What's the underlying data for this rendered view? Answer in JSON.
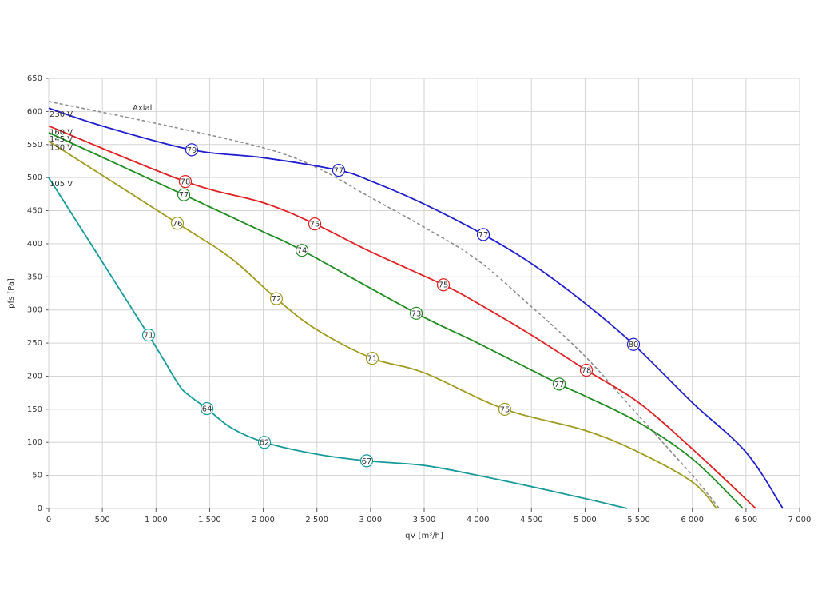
{
  "chart_data": {
    "type": "line",
    "xlabel": "qV [m³/h]",
    "ylabel": "pfs [Pa]",
    "xlim": [
      0,
      7000
    ],
    "ylim": [
      0,
      650
    ],
    "xticks": [
      0,
      500,
      {
        "value": 1000,
        "label": "1 000"
      },
      {
        "value": 1500,
        "label": "1 500"
      },
      {
        "value": 2000,
        "label": "2 000"
      },
      {
        "value": 2500,
        "label": "2 500"
      },
      {
        "value": 3000,
        "label": "3 000"
      },
      {
        "value": 3500,
        "label": "3 500"
      },
      {
        "value": 4000,
        "label": "4 000"
      },
      {
        "value": 4500,
        "label": "4 500"
      },
      {
        "value": 5000,
        "label": "5 000"
      },
      {
        "value": 5500,
        "label": "5 500"
      },
      {
        "value": 6000,
        "label": "6 000"
      },
      {
        "value": 6500,
        "label": "6 500"
      },
      {
        "value": 7000,
        "label": "7 000"
      }
    ],
    "yticks": [
      0,
      50,
      100,
      150,
      200,
      250,
      300,
      350,
      400,
      450,
      500,
      550,
      600,
      650
    ],
    "grid": true,
    "series": [
      {
        "name": "Axial",
        "color": "#8c8c8c",
        "dashed": true,
        "x": [
          0,
          1000,
          2000,
          2500,
          3000,
          3500,
          4000,
          4500,
          5000,
          5500,
          6000,
          6250
        ],
        "y": [
          615,
          582,
          545,
          515,
          470,
          425,
          375,
          305,
          230,
          140,
          50,
          0
        ],
        "markers": []
      },
      {
        "name": "230 V",
        "color": "#1f1fd0",
        "dashed": false,
        "x": [
          0,
          500,
          1333,
          2000,
          2703,
          3000,
          3500,
          4051,
          4500,
          5000,
          5451,
          6000,
          6500,
          6844
        ],
        "y": [
          605,
          578,
          542,
          530,
          511,
          495,
          460,
          414,
          370,
          310,
          248,
          160,
          85,
          0
        ],
        "markers": [
          {
            "x": 1333,
            "y": 542,
            "label": 79
          },
          {
            "x": 2703,
            "y": 511,
            "label": 77
          },
          {
            "x": 4051,
            "y": 414,
            "label": 77
          },
          {
            "x": 5451,
            "y": 248,
            "label": 80
          }
        ]
      },
      {
        "name": "160 V",
        "color": "#e02020",
        "dashed": false,
        "x": [
          0,
          1273,
          2000,
          2480,
          3000,
          3679,
          4000,
          4500,
          5012,
          5500,
          6000,
          6591
        ],
        "y": [
          578,
          494,
          462,
          430,
          388,
          338,
          310,
          262,
          209,
          160,
          90,
          0
        ],
        "markers": [
          {
            "x": 1273,
            "y": 494,
            "label": 78
          },
          {
            "x": 2480,
            "y": 430,
            "label": 75
          },
          {
            "x": 3679,
            "y": 338,
            "label": 75
          },
          {
            "x": 5012,
            "y": 209,
            "label": 78
          }
        ]
      },
      {
        "name": "145 V",
        "color": "#1e8c1e",
        "dashed": false,
        "x": [
          0,
          1259,
          2000,
          2361,
          3426,
          4000,
          4759,
          5000,
          5500,
          6000,
          6471
        ],
        "y": [
          568,
          474,
          418,
          390,
          295,
          250,
          188,
          170,
          130,
          75,
          0
        ],
        "markers": [
          {
            "x": 1259,
            "y": 474,
            "label": 77
          },
          {
            "x": 2361,
            "y": 390,
            "label": 74
          },
          {
            "x": 3426,
            "y": 295,
            "label": 73
          },
          {
            "x": 4759,
            "y": 188,
            "label": 77
          }
        ]
      },
      {
        "name": "130 V",
        "color": "#a09a1e",
        "dashed": false,
        "x": [
          0,
          1199,
          1700,
          2122,
          2500,
          3016,
          3500,
          4252,
          5000,
          5500,
          6000,
          6226
        ],
        "y": [
          555,
          431,
          378,
          317,
          270,
          227,
          205,
          150,
          118,
          85,
          40,
          0
        ],
        "markers": [
          {
            "x": 1199,
            "y": 431,
            "label": 76
          },
          {
            "x": 2122,
            "y": 317,
            "label": 72
          },
          {
            "x": 3016,
            "y": 227,
            "label": 71
          },
          {
            "x": 4252,
            "y": 150,
            "label": 75
          }
        ]
      },
      {
        "name": "105 V",
        "color": "#169a9a",
        "dashed": false,
        "x": [
          0,
          931,
          1200,
          1300,
          1475,
          1700,
          2011,
          2500,
          2964,
          3500,
          4000,
          4500,
          5000,
          5392
        ],
        "y": [
          500,
          262,
          190,
          172,
          151,
          122,
          100,
          82,
          72,
          65,
          50,
          33,
          15,
          0
        ],
        "markers": [
          {
            "x": 931,
            "y": 262,
            "label": 71
          },
          {
            "x": 1475,
            "y": 151,
            "label": 64
          },
          {
            "x": 2011,
            "y": 100,
            "label": 62
          },
          {
            "x": 2964,
            "y": 72,
            "label": 67
          }
        ]
      }
    ]
  }
}
